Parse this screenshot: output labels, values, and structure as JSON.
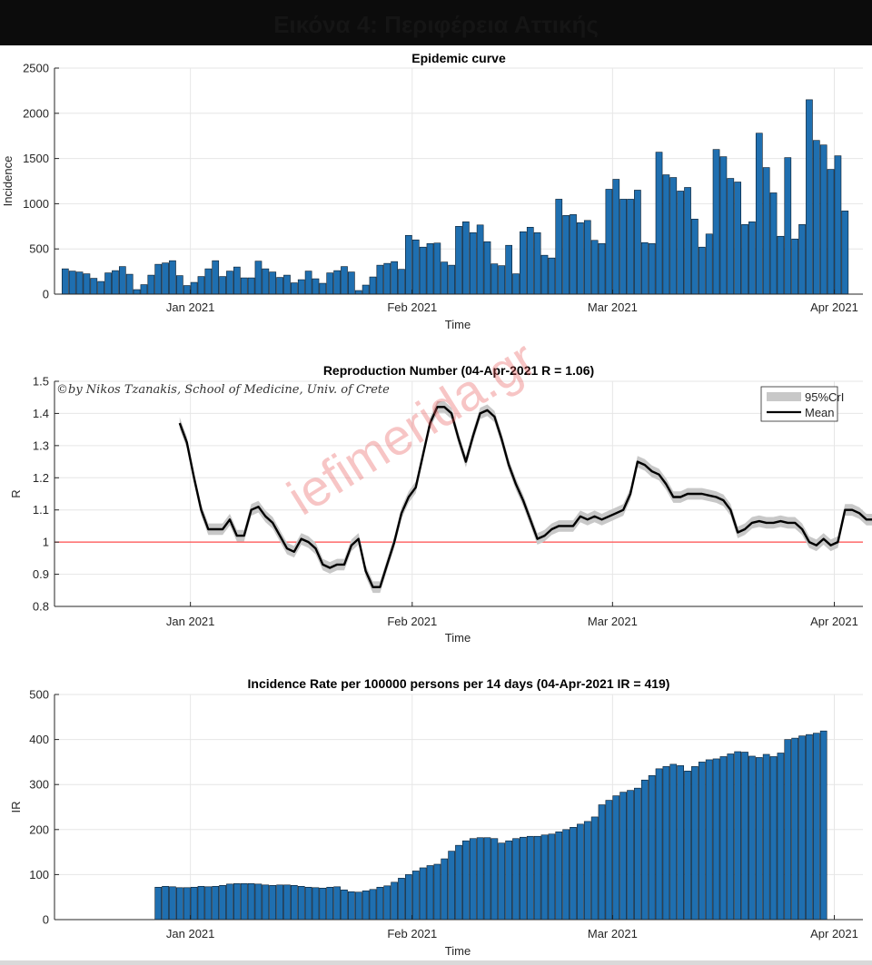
{
  "banner": {
    "title": "Εικόνα 4: Περιφέρεια Αττικής"
  },
  "credit": "©by Nikos Tzanakis, School of Medicine, Univ. of Crete",
  "watermark": "iefimerida.gr",
  "colors": {
    "bar": "#1f6fb0",
    "bar_edge": "#0b1c2b",
    "grid": "#e6e6e6",
    "ci": "#c8c8c8",
    "threshold": "#ff4d4d",
    "banner": "#0c0c0c"
  },
  "chart_data": [
    {
      "type": "bar",
      "title": "Epidemic curve",
      "xlabel": "Time",
      "ylabel": "Incidence",
      "ylim": [
        0,
        2500
      ],
      "yticks": [
        0,
        500,
        1000,
        1500,
        2000,
        2500
      ],
      "xticks": [
        "Jan 2021",
        "Feb 2021",
        "Mar 2021",
        "Apr 2021"
      ],
      "x_start": "2020-12-14",
      "x_end": "2021-04-04",
      "grid": true,
      "values": [
        280,
        255,
        245,
        225,
        175,
        140,
        235,
        260,
        305,
        220,
        50,
        105,
        210,
        330,
        345,
        370,
        205,
        95,
        130,
        195,
        280,
        370,
        195,
        255,
        300,
        180,
        180,
        365,
        280,
        245,
        185,
        210,
        125,
        160,
        255,
        170,
        120,
        235,
        260,
        305,
        245,
        40,
        100,
        190,
        320,
        340,
        360,
        275,
        650,
        600,
        520,
        560,
        565,
        355,
        320,
        750,
        800,
        680,
        765,
        580,
        335,
        315,
        540,
        225,
        690,
        740,
        680,
        430,
        400,
        1050,
        870,
        880,
        790,
        815,
        595,
        560,
        1160,
        1270,
        1050,
        1050,
        1150,
        570,
        560,
        1570,
        1320,
        1290,
        1140,
        1180,
        830,
        520,
        665,
        1600,
        1520,
        1280,
        1240,
        770,
        800,
        1780,
        1400,
        1120,
        640,
        1510,
        610,
        770,
        2150,
        1700,
        1650,
        1380,
        1530,
        920
      ]
    },
    {
      "type": "line",
      "title": "Reproduction Number (04-Apr-2021 R = 1.06)",
      "xlabel": "Time",
      "ylabel": "R",
      "ylim": [
        0.8,
        1.5
      ],
      "yticks": [
        0.8,
        0.9,
        1,
        1.1,
        1.2,
        1.3,
        1.4,
        1.5
      ],
      "xticks": [
        "Jan 2021",
        "Feb 2021",
        "Mar 2021",
        "Apr 2021"
      ],
      "x_start": "2020-12-30",
      "x_end": "2021-04-04",
      "threshold": 1,
      "legend": [
        "95%CrI",
        "Mean"
      ],
      "legend_position": "top-right",
      "grid": true,
      "series": [
        {
          "name": "Mean",
          "values": [
            1.37,
            1.31,
            1.2,
            1.1,
            1.04,
            1.04,
            1.04,
            1.07,
            1.02,
            1.02,
            1.1,
            1.11,
            1.08,
            1.06,
            1.02,
            0.98,
            0.97,
            1.01,
            1.0,
            0.98,
            0.93,
            0.92,
            0.93,
            0.93,
            0.99,
            1.01,
            0.91,
            0.86,
            0.86,
            0.93,
            1.0,
            1.09,
            1.14,
            1.17,
            1.27,
            1.37,
            1.42,
            1.42,
            1.4,
            1.32,
            1.25,
            1.33,
            1.4,
            1.41,
            1.39,
            1.32,
            1.24,
            1.18,
            1.13,
            1.07,
            1.01,
            1.02,
            1.04,
            1.05,
            1.05,
            1.05,
            1.08,
            1.07,
            1.08,
            1.07,
            1.08,
            1.09,
            1.1,
            1.15,
            1.25,
            1.24,
            1.22,
            1.21,
            1.18,
            1.14,
            1.14,
            1.15,
            1.15,
            1.15,
            1.145,
            1.14,
            1.13,
            1.1,
            1.03,
            1.04,
            1.06,
            1.065,
            1.06,
            1.06,
            1.065,
            1.06,
            1.06,
            1.04,
            1.0,
            0.99,
            1.01,
            0.99,
            1.0,
            1.1,
            1.1,
            1.09,
            1.07,
            1.07,
            1.06
          ]
        }
      ]
    },
    {
      "type": "bar",
      "title": "Incidence Rate per 100000 persons per 14 days (04-Apr-2021 IR = 419)",
      "xlabel": "Time",
      "ylabel": "IR",
      "ylim": [
        0,
        500
      ],
      "yticks": [
        0,
        100,
        200,
        300,
        400,
        500
      ],
      "xticks": [
        "Jan 2021",
        "Feb 2021",
        "Mar 2021",
        "Apr 2021"
      ],
      "x_start": "2020-12-27",
      "x_end": "2021-04-04",
      "grid": true,
      "values": [
        72,
        74,
        73,
        71,
        71,
        72,
        74,
        73,
        74,
        76,
        79,
        80,
        80,
        80,
        79,
        77,
        76,
        77,
        77,
        76,
        74,
        72,
        71,
        70,
        72,
        73,
        66,
        62,
        61,
        64,
        67,
        72,
        75,
        83,
        92,
        100,
        108,
        115,
        120,
        123,
        135,
        152,
        165,
        175,
        180,
        182,
        182,
        180,
        170,
        175,
        180,
        183,
        185,
        185,
        188,
        190,
        195,
        200,
        205,
        212,
        218,
        228,
        255,
        265,
        275,
        283,
        287,
        292,
        310,
        320,
        335,
        340,
        345,
        342,
        330,
        340,
        350,
        355,
        357,
        362,
        368,
        373,
        372,
        363,
        360,
        367,
        362,
        370,
        400,
        403,
        408,
        411,
        414,
        419
      ]
    }
  ]
}
